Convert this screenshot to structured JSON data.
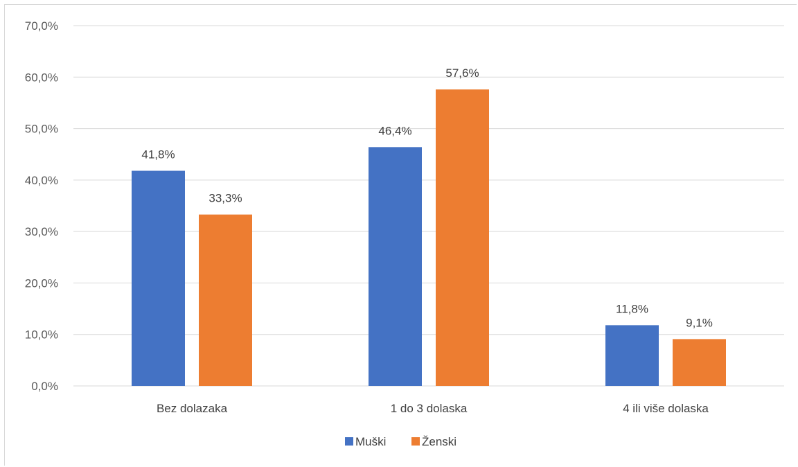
{
  "chart_data": {
    "type": "bar",
    "categories": [
      "Bez dolazaka",
      "1 do 3 dolaska",
      "4 ili više dolaska"
    ],
    "series": [
      {
        "name": "Muški",
        "values": [
          41.8,
          46.4,
          11.8
        ],
        "labels": [
          "41,8%",
          "46,4%",
          "11,8%"
        ],
        "color": "#4472c4"
      },
      {
        "name": "Ženski",
        "values": [
          33.3,
          57.6,
          9.1
        ],
        "labels": [
          "33,3%",
          "57,6%",
          "9,1%"
        ],
        "color": "#ed7d31"
      }
    ],
    "ylim": [
      0,
      70
    ],
    "yticks": [
      0,
      10,
      20,
      30,
      40,
      50,
      60,
      70
    ],
    "ytick_labels": [
      "0,0%",
      "10,0%",
      "20,0%",
      "30,0%",
      "40,0%",
      "50,0%",
      "60,0%",
      "70,0%"
    ],
    "grid": true,
    "legend_position": "bottom",
    "title": "",
    "xlabel": "",
    "ylabel": ""
  }
}
